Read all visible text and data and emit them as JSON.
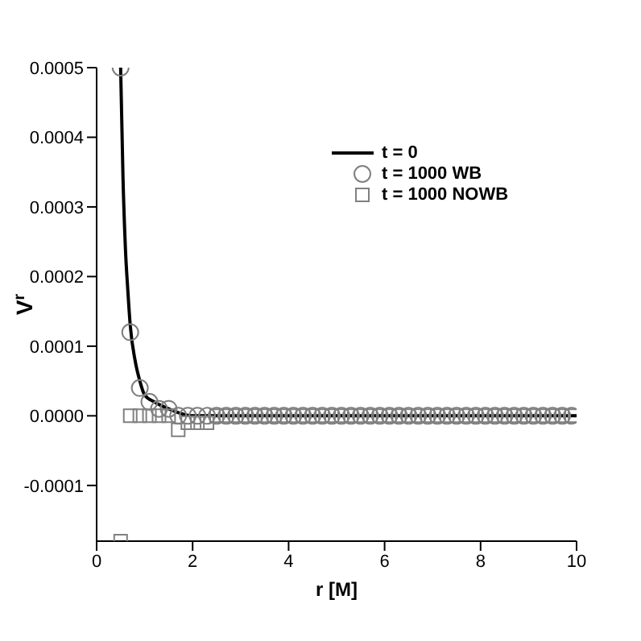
{
  "chart_data": {
    "type": "line",
    "xlabel": "r [M]",
    "ylabel": "V$^{r}$",
    "xlim": [
      0,
      10
    ],
    "xticks": [
      0,
      2,
      4,
      6,
      8,
      10
    ],
    "ylim": [
      -0.00018,
      0.0005
    ],
    "yticks": [
      -0.0001,
      {
        "value": 0,
        "label": "0.0000"
      },
      0.0001,
      0.0002,
      0.0003,
      0.0004,
      0.0005
    ],
    "grid": false,
    "legend": "top right",
    "series": [
      {
        "name": "t = 0",
        "color": "#000000",
        "marker": "none",
        "line_style": "solid",
        "x": [
          0.5,
          0.55,
          0.6,
          0.65,
          0.7,
          0.8,
          0.9,
          1.0,
          1.2,
          1.5,
          2,
          3,
          5,
          10
        ],
        "values": [
          0.0005,
          0.00034,
          0.00024,
          0.00018,
          0.00013,
          8e-05,
          5e-05,
          3e-05,
          2e-05,
          1e-05,
          0,
          0,
          0,
          0
        ]
      },
      {
        "name": "t = 1000 WB",
        "type": "scatter",
        "color": "#808080",
        "marker": "circle",
        "x": [
          0.5,
          0.7,
          0.9,
          1.1,
          1.3,
          1.5,
          1.7,
          1.9,
          2.1,
          2.3,
          2.5,
          2.7,
          2.9,
          3.1,
          3.3,
          3.5,
          3.7,
          3.9,
          4.1,
          4.3,
          4.5,
          4.7,
          4.9,
          5.1,
          5.3,
          5.5,
          5.7,
          5.9,
          6.1,
          6.3,
          6.5,
          6.7,
          6.9,
          7.1,
          7.3,
          7.5,
          7.7,
          7.9,
          8.1,
          8.3,
          8.5,
          8.7,
          8.9,
          9.1,
          9.3,
          9.5,
          9.7,
          9.9
        ],
        "values": [
          0.0005,
          0.00012,
          4e-05,
          2e-05,
          1e-05,
          1e-05,
          0,
          0,
          0,
          0,
          0,
          0,
          0,
          0,
          0,
          0,
          0,
          0,
          0,
          0,
          0,
          0,
          0,
          0,
          0,
          0,
          0,
          0,
          0,
          0,
          0,
          0,
          0,
          0,
          0,
          0,
          0,
          0,
          0,
          0,
          0,
          0,
          0,
          0,
          0,
          0,
          0,
          0
        ]
      },
      {
        "name": "t = 1000 NOWB",
        "type": "scatter",
        "color": "#808080",
        "marker": "square",
        "x": [
          0.5,
          0.7,
          0.9,
          1.1,
          1.3,
          1.5,
          1.7,
          1.9,
          2.1,
          2.3,
          2.5,
          2.7,
          2.9,
          3.1,
          3.3,
          3.5,
          3.7,
          3.9,
          4.1,
          4.3,
          4.5,
          4.7,
          4.9,
          5.1,
          5.3,
          5.5,
          5.7,
          5.9,
          6.1,
          6.3,
          6.5,
          6.7,
          6.9,
          7.1,
          7.3,
          7.5,
          7.7,
          7.9,
          8.1,
          8.3,
          8.5,
          8.7,
          8.9,
          9.1,
          9.3,
          9.5,
          9.7,
          9.9
        ],
        "values": [
          -0.00018,
          0,
          0,
          0,
          0,
          0,
          -2e-05,
          -1e-05,
          -1e-05,
          -1e-05,
          0,
          0,
          0,
          0,
          0,
          0,
          0,
          0,
          0,
          0,
          0,
          0,
          0,
          0,
          0,
          0,
          0,
          0,
          0,
          0,
          0,
          0,
          0,
          0,
          0,
          0,
          0,
          0,
          0,
          0,
          0,
          0,
          0,
          0,
          0,
          0,
          0,
          0
        ]
      }
    ]
  }
}
